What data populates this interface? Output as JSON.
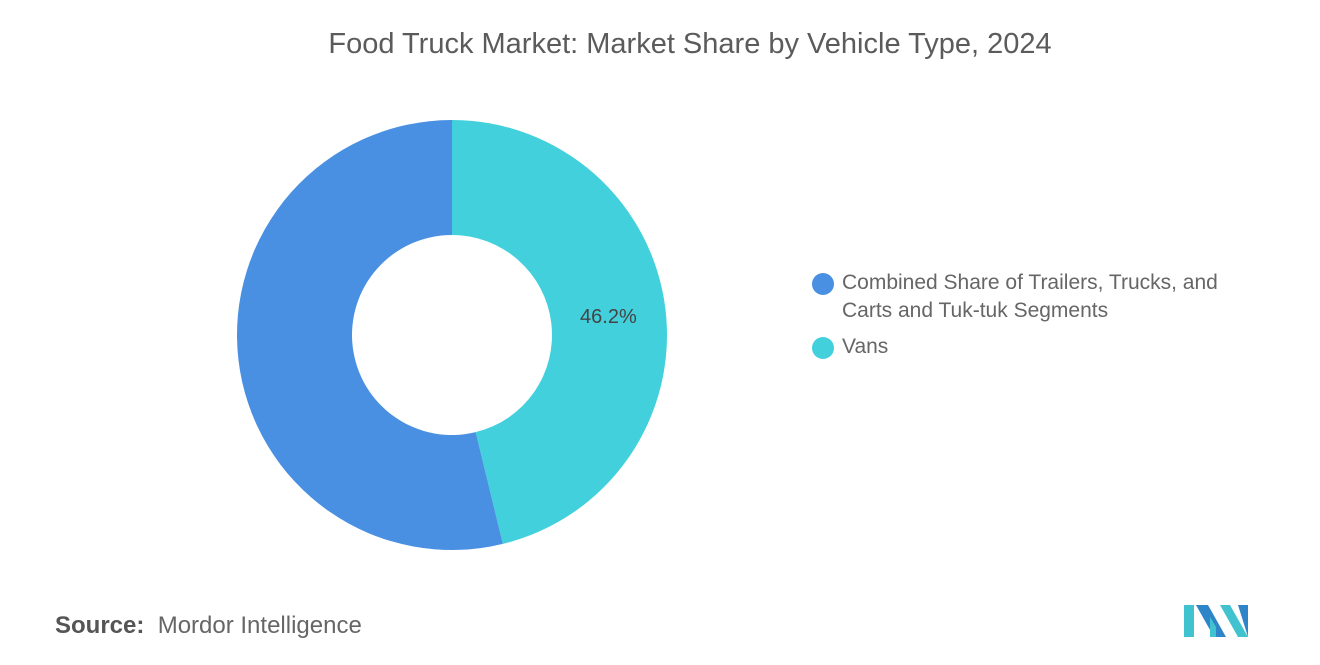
{
  "chart_data": {
    "type": "pie",
    "donut": true,
    "title": "Food Truck Market: Market Share by Vehicle Type, 2024",
    "start": "top",
    "direction": "clockwise",
    "slices": [
      {
        "name": "Vans",
        "value": 46.2,
        "label": "46.2%",
        "color": "#41d0dc"
      },
      {
        "name": "Combined Share of Trailers, Trucks, and Carts and Tuk-tuk Segments",
        "value": 53.8,
        "label": "",
        "color": "#4a90e2"
      }
    ],
    "legend": {
      "placement": "right",
      "entries": [
        {
          "label": "Combined Share of Trailers, Trucks, and Carts and Tuk-tuk Segments",
          "color": "#4a90e2"
        },
        {
          "label": "Vans",
          "color": "#41d0dc"
        }
      ]
    }
  },
  "source": {
    "label": "Source:",
    "value": "Mordor Intelligence"
  },
  "logo": {
    "text": "Mordor Intelligence",
    "colors": [
      "#2e86c8",
      "#41c3cf"
    ]
  }
}
